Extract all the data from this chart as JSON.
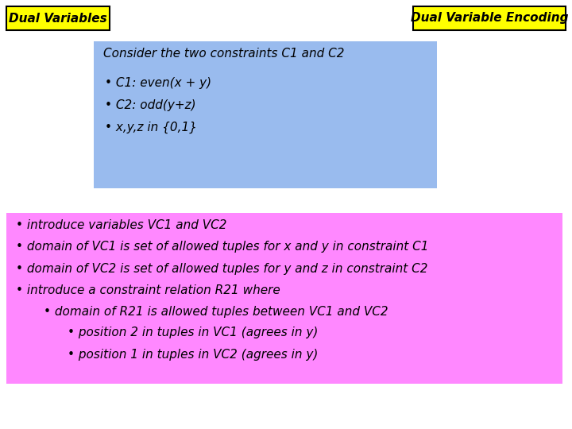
{
  "title_left": "Dual Variables",
  "title_right": "Dual Variable Encoding",
  "title_bg": "#FFFF00",
  "title_border": "#000000",
  "background": "#FFFFFF",
  "blue_box_color": "#99BBEE",
  "pink_box_color": "#FF88FF",
  "blue_box_text_title": "Consider the two constraints C1 and C2",
  "blue_box_bullets": [
    "C1: even(x + y)",
    "C2: odd(y+z)",
    "x,y,z in {0,1}"
  ],
  "pink_box_lines": [
    [
      0,
      "introduce variables VC1 and VC2"
    ],
    [
      0,
      "domain of VC1 is set of allowed tuples for x and y in constraint C1"
    ],
    [
      0,
      "domain of VC2 is set of allowed tuples for y and z in constraint C2"
    ],
    [
      0,
      "introduce a constraint relation R21 where"
    ],
    [
      1,
      "domain of R21 is allowed tuples between VC1 and VC2"
    ],
    [
      2,
      "position 2 in tuples in VC1 (agrees in y)"
    ],
    [
      2,
      "position 1 in tuples in VC2 (agrees in y)"
    ]
  ],
  "font_size_title": 11,
  "font_size_content": 11,
  "font_size_blue_title": 11
}
